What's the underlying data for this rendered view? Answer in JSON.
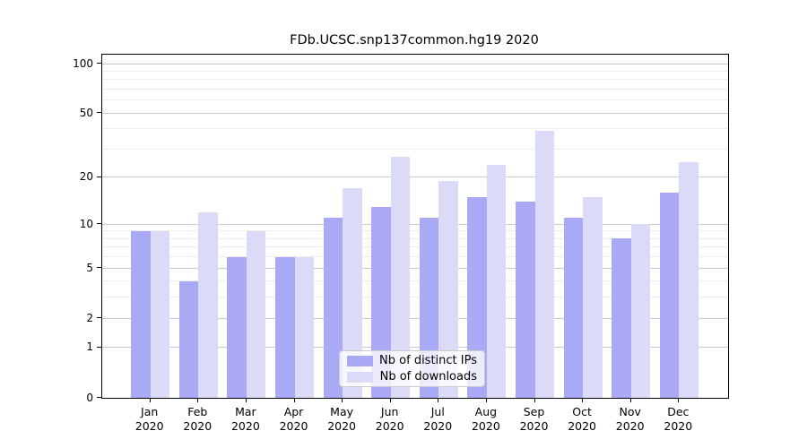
{
  "chart_data": {
    "type": "bar",
    "title": "FDb.UCSC.snp137common.hg19 2020",
    "categories": [
      "Jan",
      "Feb",
      "Mar",
      "Apr",
      "May",
      "Jun",
      "Jul",
      "Aug",
      "Sep",
      "Oct",
      "Nov",
      "Dec"
    ],
    "year_label": "2020",
    "series": [
      {
        "name": "Nb of distinct IPs",
        "color": "#a9a9f5",
        "values": [
          9,
          4,
          6,
          6,
          11,
          13,
          11,
          15,
          14,
          11,
          8,
          16
        ]
      },
      {
        "name": "Nb of downloads",
        "color": "#dbdbf8",
        "values": [
          9,
          12,
          9,
          6,
          17,
          27,
          19,
          24,
          39,
          15,
          10,
          25
        ]
      }
    ],
    "xlabel": "",
    "ylabel": "",
    "y_scale": "log1p",
    "y_ticks": [
      0,
      1,
      2,
      5,
      10,
      20,
      50,
      100
    ],
    "y_minor_ticks": [
      3,
      4,
      6,
      7,
      8,
      9,
      30,
      40,
      60,
      70,
      80,
      90
    ],
    "ylim": [
      0,
      113
    ],
    "grid": "horizontal",
    "legend_position": "inside-bottom-center",
    "colors": {
      "major_grid": "#c9c9c9",
      "minor_grid": "#ededed",
      "frame": "#000000",
      "text": "#000000"
    }
  }
}
